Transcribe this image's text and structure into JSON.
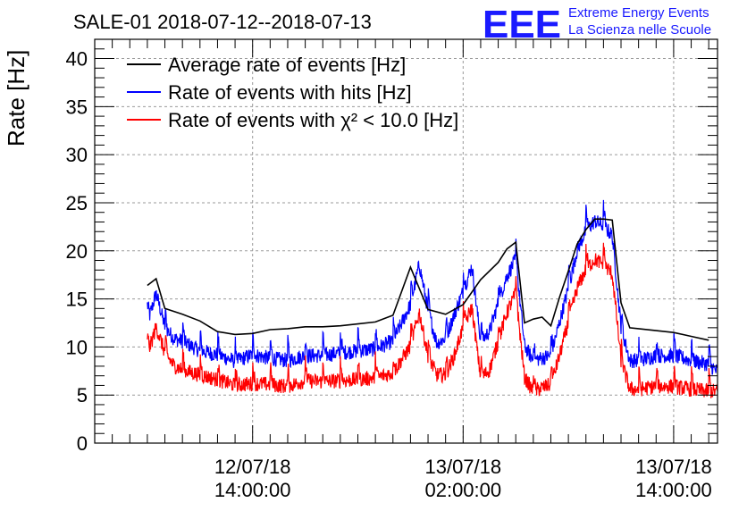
{
  "chart_data": {
    "type": "line",
    "title": "SALE-01 2018-07-12--2018-07-13",
    "ylabel": "Rate [Hz]",
    "xlabel": "",
    "ylim": [
      0,
      42
    ],
    "xlim": [
      5.0,
      40.5
    ],
    "y_ticks": [
      0,
      5,
      10,
      15,
      20,
      25,
      30,
      35,
      40
    ],
    "x_unit": "hours since 12/07/18 00:00:00",
    "x_ticks": [
      {
        "value": 14,
        "date": "12/07/18",
        "time": "14:00:00"
      },
      {
        "value": 26,
        "date": "13/07/18",
        "time": "02:00:00"
      },
      {
        "value": 38,
        "date": "13/07/18",
        "time": "14:00:00"
      }
    ],
    "grid": true,
    "legend_position": "top-left",
    "logo": {
      "letters": "EEE",
      "line1": "Extreme Energy Events",
      "line2": "La Scienza nelle Scuole"
    },
    "series": [
      {
        "name": "Average rate of events [Hz]",
        "legend_label": "Average rate of events [Hz]",
        "color": "#000000",
        "style": "smooth",
        "x": [
          8.0,
          8.5,
          9.0,
          10.0,
          11.0,
          12.0,
          13.0,
          14.0,
          15.0,
          16.0,
          17.0,
          18.0,
          19.0,
          20.0,
          21.0,
          22.0,
          23.0,
          24.0,
          25.0,
          26.0,
          27.0,
          28.0,
          28.5,
          29.0,
          29.5,
          30.0,
          30.5,
          31.0,
          31.5,
          32.0,
          32.5,
          33.0,
          33.5,
          34.0,
          34.5,
          35.0,
          35.5,
          36.0,
          37.0,
          38.0,
          39.0,
          40.0
        ],
        "values": [
          16.4,
          17.1,
          14.0,
          13.4,
          12.7,
          11.6,
          11.3,
          11.4,
          11.8,
          11.9,
          12.1,
          12.1,
          12.2,
          12.4,
          12.6,
          13.3,
          18.3,
          13.9,
          13.4,
          14.4,
          17.0,
          18.8,
          20.2,
          20.9,
          12.5,
          12.9,
          13.1,
          12.2,
          15.2,
          17.9,
          20.7,
          22.2,
          23.3,
          23.3,
          23.2,
          14.6,
          12.0,
          11.9,
          11.7,
          11.5,
          11.1,
          10.7
        ]
      },
      {
        "name": "Rate of events with hits [Hz]",
        "legend_label": "Rate of events with hits [Hz]",
        "color": "#0000ff",
        "style": "noisy",
        "x": [
          8.0,
          8.5,
          9.0,
          9.5,
          10.0,
          11.0,
          12.0,
          13.0,
          14.0,
          15.0,
          16.0,
          17.0,
          18.0,
          19.0,
          20.0,
          21.0,
          22.0,
          23.0,
          23.5,
          24.0,
          24.5,
          25.0,
          25.5,
          26.0,
          26.5,
          27.0,
          27.5,
          28.0,
          28.5,
          29.0,
          29.5,
          30.0,
          31.0,
          31.5,
          32.0,
          32.5,
          33.0,
          33.5,
          34.0,
          34.5,
          35.0,
          35.5,
          36.0,
          37.0,
          38.0,
          39.0,
          40.0,
          40.5
        ],
        "values": [
          12.8,
          16.0,
          12.5,
          11.3,
          11.0,
          10.0,
          9.6,
          8.9,
          9.6,
          9.2,
          9.0,
          9.5,
          9.5,
          9.8,
          10.0,
          10.2,
          11.0,
          14.8,
          19.0,
          14.2,
          10.8,
          11.3,
          13.8,
          16.2,
          18.8,
          11.0,
          12.0,
          15.0,
          17.8,
          19.5,
          10.5,
          9.0,
          9.5,
          13.0,
          16.5,
          20.5,
          22.5,
          23.5,
          23.0,
          22.0,
          12.5,
          9.0,
          9.0,
          9.5,
          9.5,
          9.0,
          8.6,
          7.8
        ]
      },
      {
        "name": "Rate of events with chi2 < 10.0 [Hz]",
        "legend_label": "Rate of events with χ² < 10.0 [Hz]",
        "color": "#ff0000",
        "style": "noisy",
        "x": [
          8.0,
          8.5,
          9.0,
          9.5,
          10.0,
          11.0,
          12.0,
          13.0,
          14.0,
          15.0,
          16.0,
          17.0,
          18.0,
          19.0,
          20.0,
          21.0,
          22.0,
          23.0,
          23.5,
          24.0,
          24.5,
          25.0,
          25.5,
          26.0,
          26.5,
          27.0,
          27.5,
          28.0,
          28.5,
          29.0,
          29.5,
          30.0,
          31.0,
          31.5,
          32.0,
          32.5,
          33.0,
          33.5,
          34.0,
          34.5,
          35.0,
          35.5,
          36.0,
          37.0,
          38.0,
          39.0,
          40.0,
          40.5
        ],
        "values": [
          9.5,
          12.5,
          9.8,
          8.5,
          8.0,
          7.5,
          7.0,
          6.4,
          6.6,
          6.5,
          6.3,
          6.9,
          6.8,
          6.9,
          7.0,
          7.2,
          7.7,
          10.5,
          14.0,
          9.5,
          7.5,
          7.5,
          9.5,
          12.5,
          14.5,
          7.2,
          8.0,
          11.0,
          14.0,
          16.0,
          7.2,
          5.8,
          6.5,
          9.5,
          13.0,
          16.5,
          18.5,
          19.5,
          19.0,
          18.0,
          9.0,
          6.0,
          6.0,
          6.3,
          6.3,
          6.0,
          5.8,
          5.8
        ]
      }
    ]
  }
}
